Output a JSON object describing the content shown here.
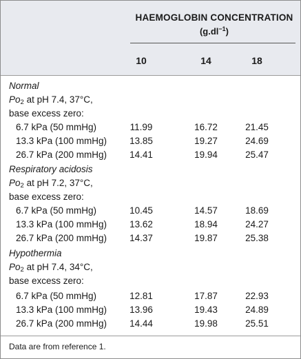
{
  "header": {
    "title": "HAEMOGLOBIN CONCENTRATION",
    "unit_prefix": "(g.dl",
    "unit_exponent": "−1",
    "unit_suffix": ")",
    "columns": [
      "10",
      "14",
      "18"
    ]
  },
  "sections": [
    {
      "name": "Normal",
      "condition_po": "Po",
      "condition_sub": "2",
      "condition_rest": " at pH 7.4, 37°C,",
      "base_excess": "base excess zero:",
      "rows": [
        {
          "pressure": "6.7 kPa (50 mmHg)",
          "values": [
            "11.99",
            "16.72",
            "21.45"
          ]
        },
        {
          "pressure": "13.3 kPa (100 mmHg)",
          "values": [
            "13.85",
            "19.27",
            "24.69"
          ]
        },
        {
          "pressure": "26.7 kPa (200 mmHg)",
          "values": [
            "14.41",
            "19.94",
            "25.47"
          ]
        }
      ]
    },
    {
      "name": "Respiratory acidosis",
      "condition_po": "Po",
      "condition_sub": "2",
      "condition_rest": " at pH 7.2, 37°C,",
      "base_excess": "base excess zero:",
      "rows": [
        {
          "pressure": "6.7 kPa (50 mmHg)",
          "values": [
            "10.45",
            "14.57",
            "18.69"
          ]
        },
        {
          "pressure": "13.3 kPa (100 mmHg)",
          "values": [
            "13.62",
            "18.94",
            "24.27"
          ]
        },
        {
          "pressure": "26.7 kPa (200 mmHg)",
          "values": [
            "14.37",
            "19.87",
            "25.38"
          ]
        }
      ]
    },
    {
      "name": "Hypothermia",
      "condition_po": "Po",
      "condition_sub": "2",
      "condition_rest": " at pH 7.4, 34°C,",
      "base_excess": "base excess zero:",
      "rows": [
        {
          "pressure": "6.7 kPa (50 mmHg)",
          "values": [
            "12.81",
            "17.87",
            "22.93"
          ]
        },
        {
          "pressure": "13.3 kPa (100 mmHg)",
          "values": [
            "13.96",
            "19.43",
            "24.89"
          ]
        },
        {
          "pressure": "26.7 kPa (200 mmHg)",
          "values": [
            "14.44",
            "19.98",
            "25.51"
          ]
        }
      ]
    }
  ],
  "footnote": "Data are from reference 1."
}
